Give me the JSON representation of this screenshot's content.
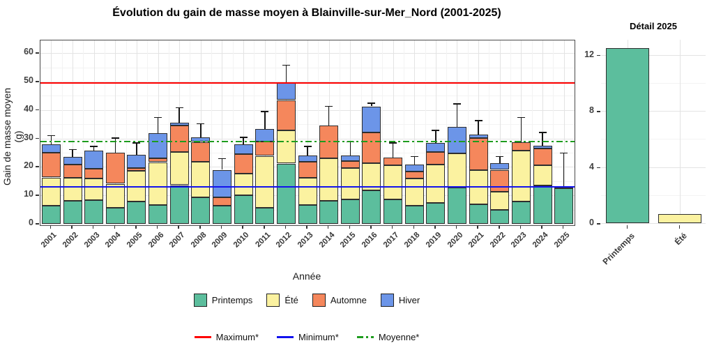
{
  "chart_data": [
    {
      "type": "bar",
      "stacked": true,
      "title": "Évolution du gain de masse moyen à Blainville-sur-Mer_Nord (2001-2025)",
      "xlabel": "Année",
      "ylabel": "Gain de masse moyen (g)",
      "categories": [
        "2001",
        "2002",
        "2003",
        "2004",
        "2005",
        "2006",
        "2007",
        "2008",
        "2009",
        "2010",
        "2011",
        "2012",
        "2013",
        "2014",
        "2015",
        "2016",
        "2017",
        "2018",
        "2019",
        "2020",
        "2021",
        "2022",
        "2023",
        "2024",
        "2025"
      ],
      "series": [
        {
          "name": "Printemps",
          "color": "#5CBE9D",
          "values": [
            6.5,
            8.0,
            8.3,
            5.6,
            7.8,
            6.7,
            13.6,
            9.4,
            6.4,
            10.0,
            5.7,
            21.2,
            6.7,
            8.2,
            8.6,
            11.7,
            8.6,
            6.3,
            7.4,
            12.7,
            6.9,
            4.9,
            7.8,
            13.5,
            12.5
          ]
        },
        {
          "name": "Été",
          "color": "#FBF2A0",
          "values": [
            9.8,
            8.2,
            7.6,
            8.5,
            10.8,
            15.0,
            11.7,
            12.5,
            0,
            7.6,
            18.2,
            11.6,
            9.4,
            14.9,
            11.0,
            9.7,
            12.0,
            9.6,
            13.4,
            12.1,
            11.9,
            6.4,
            17.9,
            7.1,
            0.65
          ]
        },
        {
          "name": "Automne",
          "color": "#F5875C",
          "values": [
            8.8,
            4.6,
            3.5,
            10.8,
            1.0,
            1.3,
            9.3,
            6.9,
            3.0,
            6.9,
            5.1,
            10.7,
            5.8,
            11.5,
            2.5,
            10.7,
            2.7,
            2.5,
            4.4,
            0,
            11.4,
            7.7,
            2.9,
            5.8,
            0
          ]
        },
        {
          "name": "Hiver",
          "color": "#6C95E8",
          "values": [
            2.8,
            2.7,
            6.3,
            0,
            4.7,
            8.9,
            0.9,
            1.7,
            9.6,
            3.4,
            4.3,
            6.1,
            2.2,
            0,
            2.0,
            9.2,
            0,
            2.4,
            3.2,
            9.3,
            1.1,
            2.4,
            0,
            1.0,
            0
          ]
        }
      ],
      "error_high": [
        31.2,
        26.3,
        27.4,
        30.4,
        28.6,
        37.6,
        41.0,
        35.4,
        23.1,
        30.6,
        39.6,
        56.0,
        27.4,
        41.5,
        29.0,
        42.6,
        28.6,
        23.9,
        33.1,
        42.3,
        36.5,
        23.9,
        37.6,
        32.3,
        25.1
      ],
      "yticks": [
        0,
        10,
        20,
        30,
        40,
        50,
        60
      ],
      "ylim": [
        0,
        64.5
      ],
      "grid": true,
      "legend_position": "bottom",
      "reference_lines": [
        {
          "label": "Maximum*",
          "value": 49.6,
          "color": "#FE0000",
          "style": "solid"
        },
        {
          "label": "Minimum*",
          "value": 13.1,
          "color": "#1212EE",
          "style": "solid"
        },
        {
          "label": "Moyenne*",
          "value": 28.9,
          "color": "#1E9C1E",
          "style": "dashdot"
        }
      ]
    },
    {
      "type": "bar",
      "title": "Détail 2025",
      "categories": [
        "Printemps",
        "Été"
      ],
      "values": [
        12.5,
        0.65
      ],
      "colors": [
        "#5CBE9D",
        "#FBF2A0"
      ],
      "yticks": [
        0,
        4,
        8,
        12
      ],
      "ylim": [
        0,
        13.1
      ],
      "grid": true
    }
  ]
}
